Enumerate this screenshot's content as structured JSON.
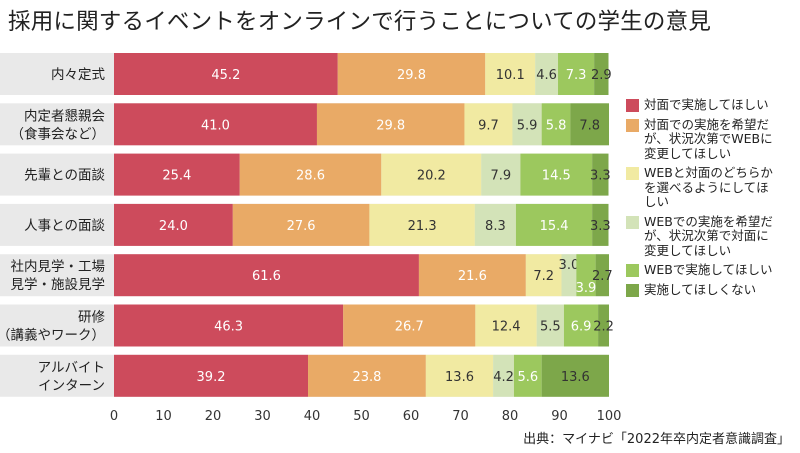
{
  "title": "採用に関するイベントをオンラインで行うことについての学生の意見",
  "source": "出典：マイナビ「2022年卒内定者意識調査」",
  "colors": {
    "s1": "#cd4b5c",
    "s2": "#e9aa66",
    "s3": "#f1eaa2",
    "s4": "#d3e3b8",
    "s5": "#9cc85e",
    "s6": "#7da74a",
    "background_band": "#e9e9e9"
  },
  "chart_data": {
    "type": "bar",
    "orientation": "horizontal",
    "stacked": true,
    "title": "採用に関するイベントをオンラインで行うことについての学生の意見",
    "xlabel": "",
    "ylabel": "",
    "xlim": [
      0,
      100
    ],
    "xticks": [
      "0",
      "10",
      "20",
      "30",
      "40",
      "50",
      "60",
      "70",
      "80",
      "90",
      "100"
    ],
    "categories": [
      [
        "内々定式"
      ],
      [
        "内定者懇親会",
        "（食事会など）"
      ],
      [
        "先輩との面談"
      ],
      [
        "人事との面談"
      ],
      [
        "社内見学・工場",
        "見学・施設見学"
      ],
      [
        "研修",
        "（講義やワーク）"
      ],
      [
        "アルバイト",
        "インターン"
      ]
    ],
    "series": [
      {
        "name": [
          "対面で実施してほしい"
        ],
        "color": "#cd4b5c",
        "values": [
          45.2,
          41.0,
          25.4,
          24.0,
          61.6,
          46.3,
          39.2
        ]
      },
      {
        "name": [
          "対面での実施を希望だ",
          "が、状況次第でWEBに",
          "変更してほしい"
        ],
        "color": "#e9aa66",
        "values": [
          29.8,
          29.8,
          28.6,
          27.6,
          21.6,
          26.7,
          23.8
        ]
      },
      {
        "name": [
          "WEBと対面のどちらか",
          "を選べるようにしてほ",
          "しい"
        ],
        "color": "#f1eaa2",
        "values": [
          10.1,
          9.7,
          20.2,
          21.3,
          7.2,
          12.4,
          13.6
        ]
      },
      {
        "name": [
          "WEBでの実施を希望だ",
          "が、状況次第で対面に",
          "変更してほしい"
        ],
        "color": "#d3e3b8",
        "values": [
          4.6,
          5.9,
          7.9,
          8.3,
          3.0,
          5.5,
          4.2
        ]
      },
      {
        "name": [
          "WEBで実施してほしい"
        ],
        "color": "#9cc85e",
        "values": [
          7.3,
          5.8,
          14.5,
          15.4,
          3.9,
          6.9,
          5.6
        ]
      },
      {
        "name": [
          "実施してほしくない"
        ],
        "color": "#7da74a",
        "values": [
          2.9,
          7.8,
          3.3,
          3.3,
          2.7,
          2.2,
          13.6
        ]
      }
    ],
    "value_labels": [
      [
        "45.2",
        "29.8",
        "10.1",
        "4.6",
        "7.3",
        "2.9"
      ],
      [
        "41.0",
        "29.8",
        "9.7",
        "5.9",
        "5.8",
        "7.8"
      ],
      [
        "25.4",
        "28.6",
        "20.2",
        "7.9",
        "14.5",
        "3.3"
      ],
      [
        "24.0",
        "27.6",
        "21.3",
        "8.3",
        "15.4",
        "3.3"
      ],
      [
        "61.6",
        "21.6",
        "7.2",
        "3.0",
        "3.9",
        "2.7"
      ],
      [
        "46.3",
        "26.7",
        "12.4",
        "5.5",
        "6.9",
        "2.2"
      ],
      [
        "39.2",
        "23.8",
        "13.6",
        "4.2",
        "5.6",
        "13.6"
      ]
    ],
    "legend_position": "right"
  }
}
